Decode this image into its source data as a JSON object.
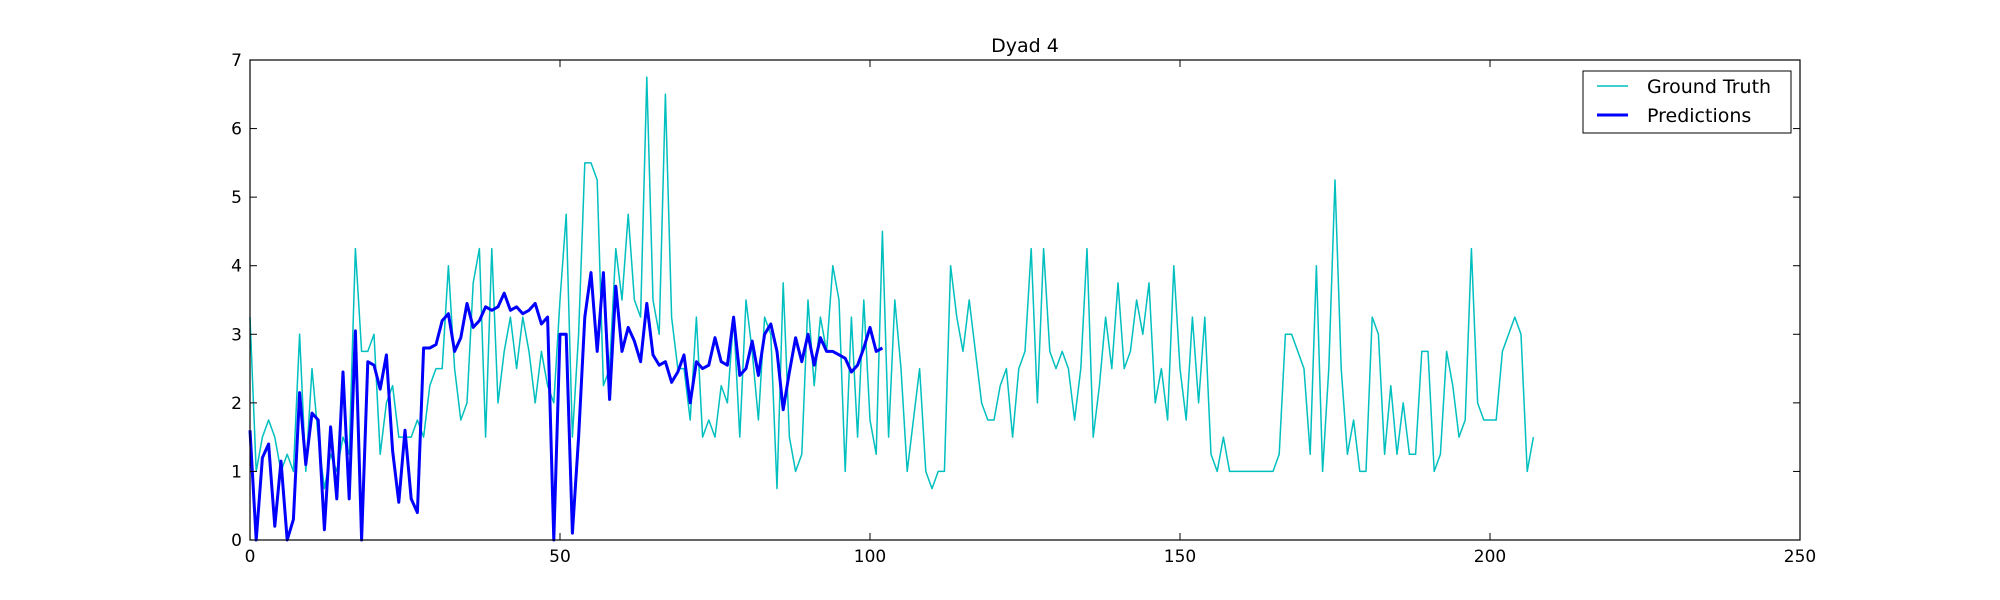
{
  "chart_data": {
    "type": "line",
    "title": "Dyad 4",
    "xlabel": "",
    "ylabel": "",
    "xlim": [
      0,
      250
    ],
    "ylim": [
      0,
      7
    ],
    "xticks": [
      0,
      50,
      100,
      150,
      200,
      250
    ],
    "yticks": [
      0,
      1,
      2,
      3,
      4,
      5,
      6,
      7
    ],
    "grid": false,
    "legend_position": "top-right",
    "series": [
      {
        "name": "Ground Truth",
        "color": "#00bfbf",
        "values": [
          3.25,
          1.0,
          1.5,
          1.75,
          1.5,
          1.0,
          1.25,
          1.0,
          3.0,
          1.0,
          2.5,
          1.5,
          0.75,
          1.25,
          1.0,
          1.5,
          1.25,
          4.25,
          2.75,
          2.75,
          3.0,
          1.25,
          2.0,
          2.25,
          1.5,
          1.5,
          1.5,
          1.75,
          1.5,
          2.25,
          2.5,
          2.5,
          4.0,
          2.5,
          1.75,
          2.0,
          3.75,
          4.25,
          1.5,
          4.25,
          2.0,
          2.75,
          3.25,
          2.5,
          3.25,
          2.75,
          2.0,
          2.75,
          2.25,
          2.0,
          3.5,
          4.75,
          1.5,
          3.0,
          5.5,
          5.5,
          5.25,
          2.25,
          2.5,
          4.25,
          3.5,
          4.75,
          3.5,
          3.25,
          6.75,
          3.5,
          3.0,
          6.5,
          3.25,
          2.5,
          2.5,
          1.75,
          3.25,
          1.5,
          1.75,
          1.5,
          2.25,
          2.0,
          3.25,
          1.5,
          3.5,
          2.75,
          1.75,
          3.25,
          3.0,
          0.75,
          3.75,
          1.5,
          1.0,
          1.25,
          3.5,
          2.25,
          3.25,
          2.75,
          4.0,
          3.5,
          1.0,
          3.25,
          1.5,
          3.5,
          1.75,
          1.25,
          4.5,
          1.5,
          3.5,
          2.5,
          1.0,
          1.75,
          2.5,
          1.0,
          0.75,
          1.0,
          1.0,
          4.0,
          3.25,
          2.75,
          3.5,
          2.75,
          2.0,
          1.75,
          1.75,
          2.25,
          2.5,
          1.5,
          2.5,
          2.75,
          4.25,
          2.0,
          4.25,
          2.75,
          2.5,
          2.75,
          2.5,
          1.75,
          2.5,
          4.25,
          1.5,
          2.25,
          3.25,
          2.5,
          3.75,
          2.5,
          2.75,
          3.5,
          3.0,
          3.75,
          2.0,
          2.5,
          1.75,
          4.0,
          2.5,
          1.75,
          3.25,
          2.0,
          3.25,
          1.25,
          1.0,
          1.5,
          1.0,
          1.0,
          1.0,
          1.0,
          1.0,
          1.0,
          1.0,
          1.0,
          1.25,
          3.0,
          3.0,
          2.75,
          2.5,
          1.25,
          4.0,
          1.0,
          2.5,
          5.25,
          2.5,
          1.25,
          1.75,
          1.0,
          1.0,
          3.25,
          3.0,
          1.25,
          2.25,
          1.25,
          2.0,
          1.25,
          1.25,
          2.75,
          2.75,
          1.0,
          1.25,
          2.75,
          2.25,
          1.5,
          1.75,
          4.25,
          2.0,
          1.75,
          1.75,
          1.75,
          2.75,
          3.0,
          3.25,
          3.0,
          1.0,
          1.5
        ]
      },
      {
        "name": "Predictions",
        "color": "#0000ff",
        "values": [
          1.6,
          0.0,
          1.2,
          1.4,
          0.2,
          1.15,
          0.0,
          0.3,
          2.15,
          1.1,
          1.85,
          1.75,
          0.15,
          1.65,
          0.6,
          2.45,
          0.6,
          3.05,
          0.0,
          2.6,
          2.55,
          2.2,
          2.7,
          1.3,
          0.55,
          1.6,
          0.6,
          0.4,
          2.8,
          2.8,
          2.85,
          3.2,
          3.3,
          2.75,
          2.95,
          3.45,
          3.1,
          3.2,
          3.4,
          3.35,
          3.4,
          3.6,
          3.35,
          3.4,
          3.3,
          3.35,
          3.45,
          3.15,
          3.25,
          0.0,
          3.0,
          3.0,
          0.1,
          1.5,
          3.25,
          3.9,
          2.75,
          3.9,
          2.05,
          3.7,
          2.75,
          3.1,
          2.9,
          2.6,
          3.45,
          2.7,
          2.55,
          2.6,
          2.3,
          2.45,
          2.7,
          2.0,
          2.6,
          2.5,
          2.55,
          2.95,
          2.6,
          2.55,
          3.25,
          2.4,
          2.5,
          2.9,
          2.4,
          3.0,
          3.15,
          2.75,
          1.9,
          2.45,
          2.95,
          2.6,
          3.0,
          2.55,
          2.95,
          2.75,
          2.75,
          2.7,
          2.65,
          2.45,
          2.55,
          2.8,
          3.1,
          2.75,
          2.8
        ]
      }
    ]
  }
}
